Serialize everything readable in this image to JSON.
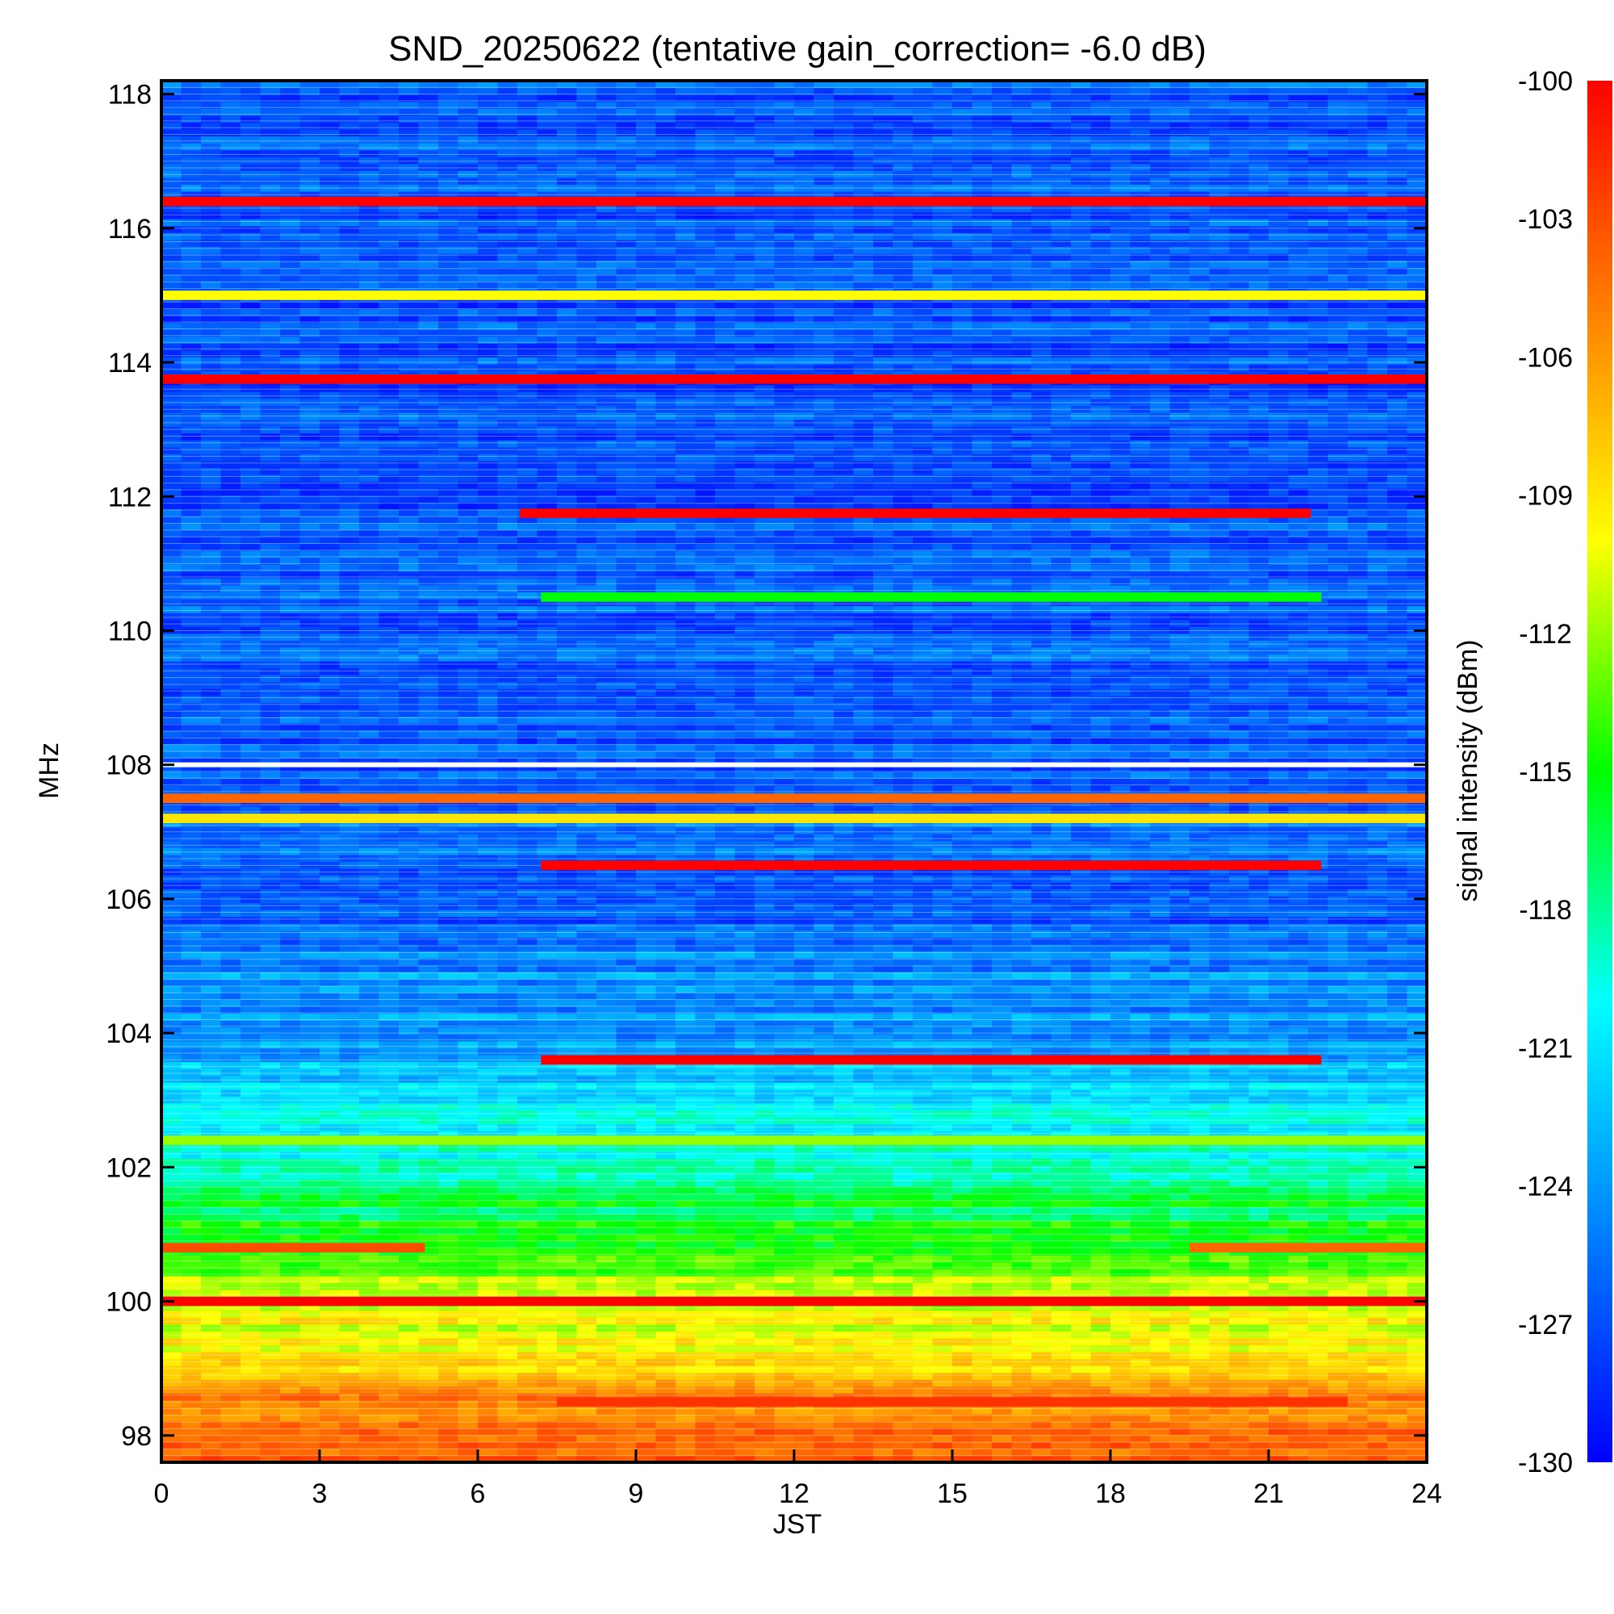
{
  "chart_data": {
    "type": "heatmap",
    "title": "SND_20250622 (tentative gain_correction= -6.0 dB)",
    "xlabel": "JST",
    "ylabel": "MHz",
    "colorbar_label": "signal intensity (dBm)",
    "xlim": [
      0,
      24
    ],
    "ylim": [
      97.6,
      118.2
    ],
    "clim": [
      -130,
      -100
    ],
    "x_ticks": [
      "0",
      "3",
      "6",
      "9",
      "12",
      "15",
      "18",
      "21",
      "24"
    ],
    "x_tick_values": [
      0,
      3,
      6,
      9,
      12,
      15,
      18,
      21,
      24
    ],
    "y_ticks": [
      "98",
      "100",
      "102",
      "104",
      "106",
      "108",
      "110",
      "112",
      "114",
      "116",
      "118"
    ],
    "y_tick_values": [
      98,
      100,
      102,
      104,
      106,
      108,
      110,
      112,
      114,
      116,
      118
    ],
    "colorbar_ticks": [
      "-100",
      "-103",
      "-106",
      "-109",
      "-112",
      "-115",
      "-118",
      "-121",
      "-124",
      "-127",
      "-130"
    ],
    "colorbar_tick_values": [
      -100,
      -103,
      -106,
      -109,
      -112,
      -115,
      -118,
      -121,
      -124,
      -127,
      -130
    ],
    "colormap": [
      "#0000ff",
      "#0080ff",
      "#00ffff",
      "#00ff00",
      "#ffff00",
      "#ff8000",
      "#ff0000"
    ],
    "background_profile": [
      {
        "mhz": 97.6,
        "dbm": -103.5
      },
      {
        "mhz": 98.5,
        "dbm": -105.5
      },
      {
        "mhz": 99.2,
        "dbm": -109.0
      },
      {
        "mhz": 100.0,
        "dbm": -111.0
      },
      {
        "mhz": 101.0,
        "dbm": -115.0
      },
      {
        "mhz": 102.0,
        "dbm": -118.5
      },
      {
        "mhz": 103.0,
        "dbm": -121.5
      },
      {
        "mhz": 104.0,
        "dbm": -124.0
      },
      {
        "mhz": 105.0,
        "dbm": -124.5
      },
      {
        "mhz": 106.0,
        "dbm": -127.0
      },
      {
        "mhz": 107.0,
        "dbm": -125.5
      },
      {
        "mhz": 108.0,
        "dbm": -126.5
      },
      {
        "mhz": 110.0,
        "dbm": -126.5
      },
      {
        "mhz": 114.0,
        "dbm": -126.8
      },
      {
        "mhz": 118.2,
        "dbm": -126.5
      }
    ],
    "strong_signals": [
      {
        "mhz": 116.4,
        "t_start": 0,
        "t_end": 24,
        "dbm": -100
      },
      {
        "mhz": 115.0,
        "t_start": 0,
        "t_end": 24,
        "dbm": -110
      },
      {
        "mhz": 113.75,
        "t_start": 0,
        "t_end": 24,
        "dbm": -100
      },
      {
        "mhz": 111.75,
        "t_start": 6.8,
        "t_end": 21.8,
        "dbm": -100
      },
      {
        "mhz": 110.5,
        "t_start": 7.2,
        "t_end": 22.0,
        "dbm": -115
      },
      {
        "mhz": 107.2,
        "t_start": 0,
        "t_end": 24,
        "dbm": -109
      },
      {
        "mhz": 107.5,
        "t_start": 0,
        "t_end": 24,
        "dbm": -104
      },
      {
        "mhz": 106.5,
        "t_start": 7.2,
        "t_end": 22.0,
        "dbm": -100
      },
      {
        "mhz": 103.6,
        "t_start": 7.2,
        "t_end": 22.0,
        "dbm": -100
      },
      {
        "mhz": 102.4,
        "t_start": 0,
        "t_end": 24,
        "dbm": -112
      },
      {
        "mhz": 100.8,
        "t_start": 0,
        "t_end": 5.0,
        "dbm": -103
      },
      {
        "mhz": 100.8,
        "t_start": 19.5,
        "t_end": 24,
        "dbm": -104
      },
      {
        "mhz": 100.0,
        "t_start": 0,
        "t_end": 24,
        "dbm": -100
      },
      {
        "mhz": 98.5,
        "t_start": 7.5,
        "t_end": 22.5,
        "dbm": -102
      }
    ],
    "white_gap_mhz": 108.0,
    "grid": false,
    "colorbar_placement": "right"
  }
}
